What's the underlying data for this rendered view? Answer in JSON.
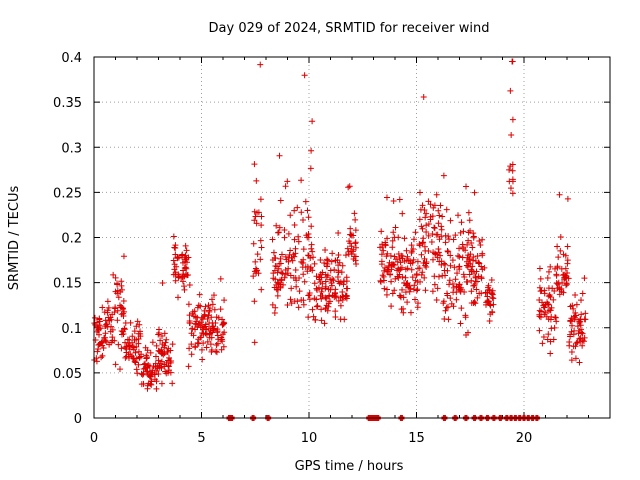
{
  "chart_data": {
    "type": "scatter",
    "title": "Day 029 of 2024, SRMTID for receiver wind",
    "xlabel": "GPS time / hours",
    "ylabel": "SRMTID / TECUs",
    "xlim": [
      0,
      24
    ],
    "ylim": [
      0,
      0.4
    ],
    "x_ticks": [
      0,
      5,
      10,
      15,
      20
    ],
    "y_ticks": [
      0,
      0.05,
      0.1,
      0.15,
      0.2,
      0.25,
      0.3,
      0.35,
      0.4
    ],
    "x_tick_labels": [
      "0",
      "5",
      "10",
      "15",
      "20"
    ],
    "y_tick_labels": [
      "0",
      "0.05",
      "0.1",
      "0.15",
      "0.2",
      "0.25",
      "0.3",
      "0.35",
      "0.4"
    ],
    "grid": true,
    "marker": "+",
    "color": "#dd0000",
    "segments": [
      {
        "x_start": 0.0,
        "x_end": 0.6,
        "mean": 0.09,
        "spread": 0.03
      },
      {
        "x_start": 0.6,
        "x_end": 1.4,
        "mean": 0.11,
        "spread": 0.04
      },
      {
        "x_start": 1.4,
        "x_end": 2.2,
        "mean": 0.075,
        "spread": 0.025
      },
      {
        "x_start": 2.2,
        "x_end": 3.0,
        "mean": 0.05,
        "spread": 0.02
      },
      {
        "x_start": 3.0,
        "x_end": 3.7,
        "mean": 0.07,
        "spread": 0.03
      },
      {
        "x_start": 3.7,
        "x_end": 4.4,
        "mean": 0.165,
        "spread": 0.03
      },
      {
        "x_start": 4.4,
        "x_end": 6.1,
        "mean": 0.1,
        "spread": 0.03
      },
      {
        "x_start": 7.4,
        "x_end": 7.8,
        "mean": 0.2,
        "spread": 0.08
      },
      {
        "x_start": 8.3,
        "x_end": 9.3,
        "mean": 0.16,
        "spread": 0.05
      },
      {
        "x_start": 9.3,
        "x_end": 10.2,
        "mean": 0.18,
        "spread": 0.06
      },
      {
        "x_start": 10.2,
        "x_end": 11.8,
        "mean": 0.14,
        "spread": 0.04
      },
      {
        "x_start": 11.8,
        "x_end": 12.2,
        "mean": 0.19,
        "spread": 0.03
      },
      {
        "x_start": 13.3,
        "x_end": 14.3,
        "mean": 0.17,
        "spread": 0.04
      },
      {
        "x_start": 14.3,
        "x_end": 15.1,
        "mean": 0.155,
        "spread": 0.04
      },
      {
        "x_start": 15.1,
        "x_end": 16.2,
        "mean": 0.19,
        "spread": 0.06
      },
      {
        "x_start": 16.2,
        "x_end": 17.4,
        "mean": 0.16,
        "spread": 0.05
      },
      {
        "x_start": 17.4,
        "x_end": 18.2,
        "mean": 0.17,
        "spread": 0.04
      },
      {
        "x_start": 18.2,
        "x_end": 18.6,
        "mean": 0.13,
        "spread": 0.02
      },
      {
        "x_start": 19.3,
        "x_end": 19.5,
        "mean": 0.3,
        "spread": 0.07
      },
      {
        "x_start": 20.7,
        "x_end": 21.5,
        "mean": 0.12,
        "spread": 0.04
      },
      {
        "x_start": 21.5,
        "x_end": 22.1,
        "mean": 0.16,
        "spread": 0.03
      },
      {
        "x_start": 22.1,
        "x_end": 22.9,
        "mean": 0.1,
        "spread": 0.03
      }
    ],
    "zero_gaps": [
      6.3,
      6.4,
      7.4,
      8.1,
      12.8,
      12.9,
      13.0,
      13.1,
      13.2,
      14.3,
      16.3,
      16.8,
      17.3,
      17.7,
      18.0,
      18.3,
      18.6,
      18.9,
      19.2,
      19.4,
      19.6,
      19.8,
      20.0,
      20.2,
      20.4,
      20.6
    ]
  }
}
